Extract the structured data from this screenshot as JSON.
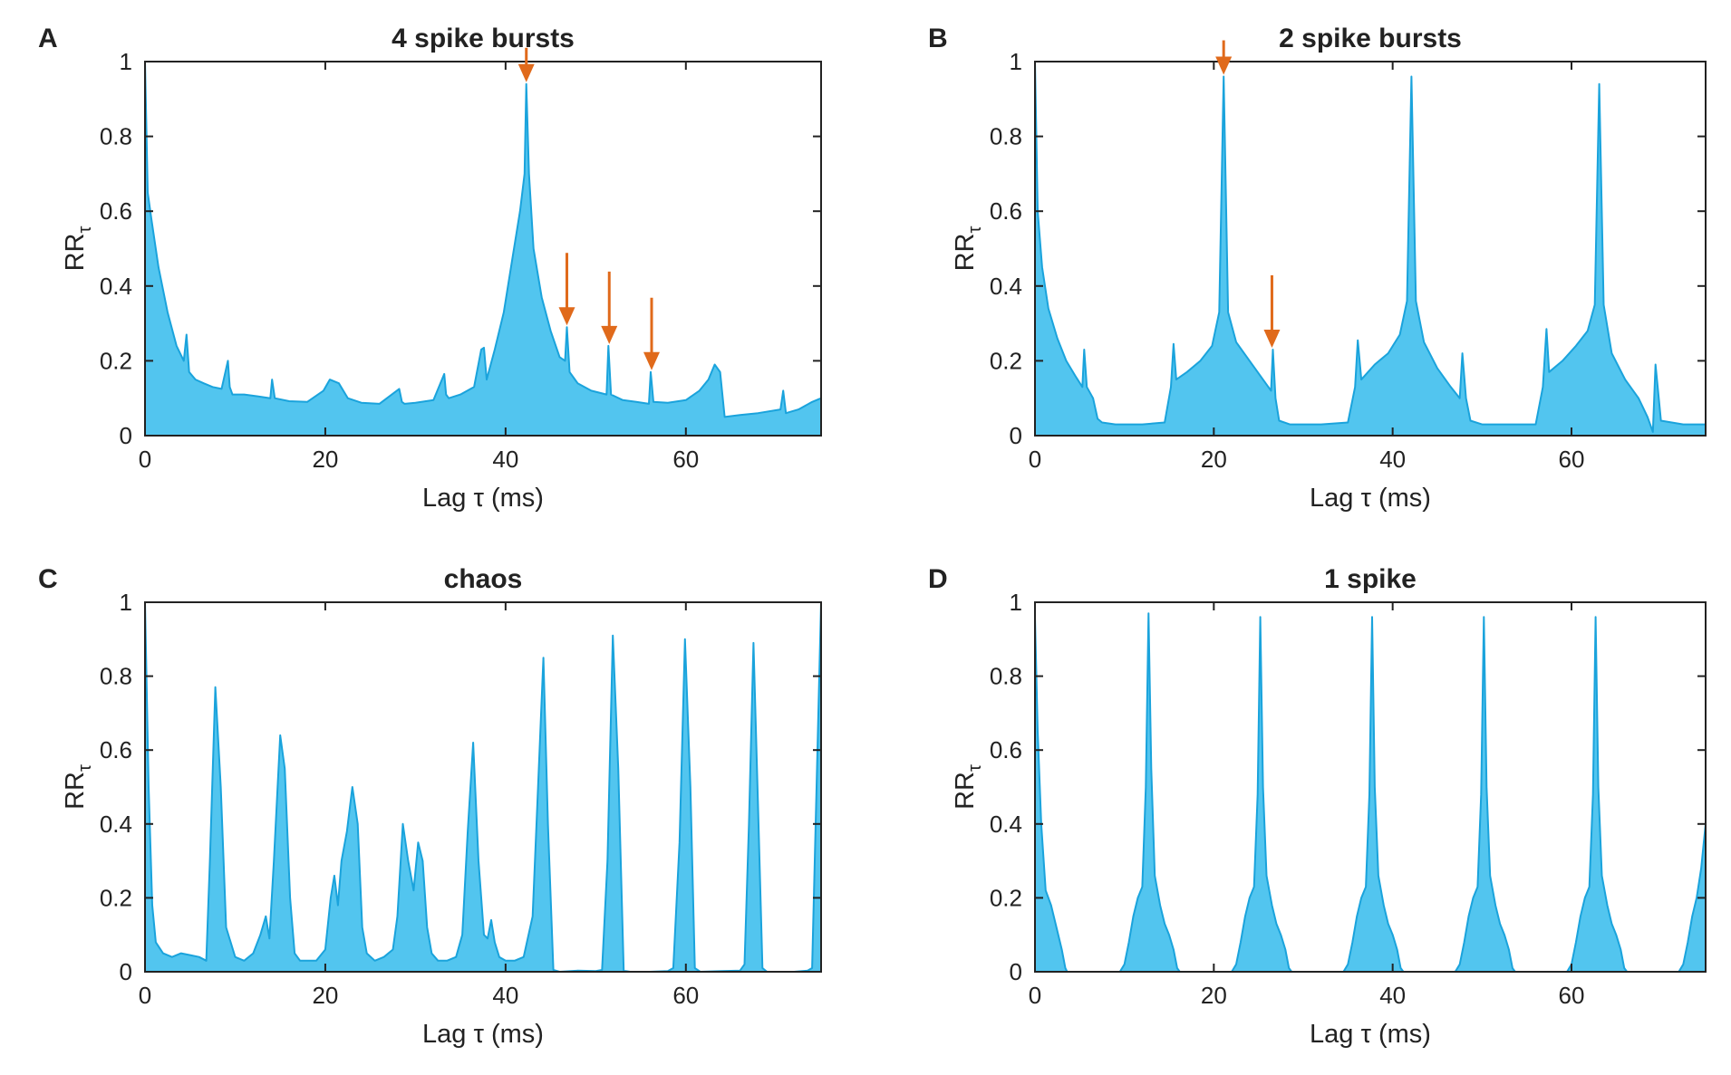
{
  "colors": {
    "fill": "#52c5ef",
    "stroke": "#1aa3dc",
    "arrow": "#e06a1b",
    "axis": "#222222"
  },
  "chart_data": [
    {
      "type": "area",
      "letter": "A",
      "title": "4 spike  bursts",
      "xlabel": "Lag τ (ms)",
      "ylabel_main": "RR",
      "ylabel_sub": "τ",
      "xlim": [
        0,
        75
      ],
      "ylim": [
        0,
        1
      ],
      "xticks": [
        0,
        20,
        40,
        60
      ],
      "yticks": [
        0,
        0.2,
        0.4,
        0.6,
        0.8,
        1
      ],
      "ytick_labels": [
        "0",
        "0.2",
        "0.4",
        "0.6",
        "0.8",
        "1"
      ],
      "arrows": [
        42.3,
        46.8,
        51.5,
        56.2
      ],
      "x": [
        0,
        0.3,
        0.7,
        1.5,
        2.5,
        3.5,
        4.3,
        4.6,
        4.9,
        5.6,
        6.5,
        7.5,
        8.5,
        9.2,
        9.4,
        9.7,
        11,
        12.5,
        13.9,
        14.1,
        14.4,
        16,
        18,
        19.8,
        20.5,
        21.5,
        22.5,
        24,
        26,
        28.2,
        28.5,
        28.8,
        30,
        32,
        33.2,
        33.4,
        33.7,
        35,
        36.5,
        37.3,
        37.6,
        37.9,
        38.8,
        39.8,
        40.8,
        41.6,
        42.1,
        42.3,
        42.6,
        43.1,
        44,
        45,
        46,
        46.6,
        46.8,
        47.1,
        48,
        49.5,
        51.2,
        51.4,
        51.7,
        53,
        54.5,
        55.9,
        56.1,
        56.4,
        58,
        60,
        61.5,
        62.5,
        63.2,
        63.8,
        64.3,
        66,
        68,
        70.5,
        70.8,
        71.1,
        72.5,
        74,
        75
      ],
      "y": [
        1,
        0.65,
        0.58,
        0.45,
        0.33,
        0.24,
        0.2,
        0.27,
        0.17,
        0.15,
        0.14,
        0.13,
        0.125,
        0.2,
        0.13,
        0.11,
        0.11,
        0.105,
        0.1,
        0.15,
        0.1,
        0.092,
        0.09,
        0.12,
        0.15,
        0.14,
        0.1,
        0.088,
        0.085,
        0.125,
        0.09,
        0.085,
        0.088,
        0.095,
        0.165,
        0.11,
        0.1,
        0.11,
        0.13,
        0.23,
        0.235,
        0.15,
        0.23,
        0.33,
        0.48,
        0.6,
        0.7,
        0.94,
        0.7,
        0.5,
        0.37,
        0.28,
        0.21,
        0.2,
        0.29,
        0.17,
        0.14,
        0.12,
        0.11,
        0.24,
        0.11,
        0.095,
        0.09,
        0.085,
        0.17,
        0.09,
        0.088,
        0.095,
        0.12,
        0.15,
        0.19,
        0.17,
        0.05,
        0.055,
        0.06,
        0.07,
        0.12,
        0.06,
        0.07,
        0.09,
        0.1
      ]
    },
    {
      "type": "area",
      "letter": "B",
      "title": "2 spike bursts",
      "xlabel": "Lag τ (ms)",
      "ylabel_main": "RR",
      "ylabel_sub": "τ",
      "xlim": [
        0,
        75
      ],
      "ylim": [
        0,
        1
      ],
      "xticks": [
        0,
        20,
        40,
        60
      ],
      "yticks": [
        0,
        0.2,
        0.4,
        0.6,
        0.8,
        1
      ],
      "ytick_labels": [
        "0",
        "0.2",
        "0.4",
        "0.6",
        "0.8",
        "1"
      ],
      "arrows": [
        21.1,
        26.5
      ],
      "x": [
        0,
        0.3,
        0.8,
        1.5,
        2.5,
        3.5,
        4.5,
        5.3,
        5.5,
        5.8,
        6.5,
        7,
        7.5,
        9,
        12,
        14.5,
        15.2,
        15.5,
        15.8,
        17,
        18.5,
        19.8,
        20.6,
        21.1,
        21.6,
        22.5,
        24,
        25.5,
        26.4,
        26.6,
        26.9,
        27.3,
        28.5,
        32,
        35,
        35.8,
        36.1,
        36.5,
        38,
        39.5,
        40.8,
        41.6,
        42.1,
        42.6,
        43.5,
        45,
        46.5,
        47.5,
        47.8,
        48.2,
        48.7,
        50,
        53,
        56,
        56.8,
        57.2,
        57.5,
        59,
        60.5,
        61.8,
        62.6,
        63.1,
        63.6,
        64.5,
        66,
        67.5,
        68.5,
        69.1,
        69.4,
        70,
        72.5,
        75
      ],
      "y": [
        1,
        0.6,
        0.45,
        0.34,
        0.26,
        0.2,
        0.16,
        0.13,
        0.23,
        0.13,
        0.1,
        0.045,
        0.035,
        0.03,
        0.03,
        0.035,
        0.13,
        0.245,
        0.15,
        0.17,
        0.2,
        0.24,
        0.33,
        0.96,
        0.33,
        0.25,
        0.2,
        0.15,
        0.12,
        0.23,
        0.1,
        0.04,
        0.03,
        0.03,
        0.035,
        0.13,
        0.255,
        0.15,
        0.19,
        0.22,
        0.27,
        0.36,
        0.96,
        0.36,
        0.25,
        0.18,
        0.13,
        0.1,
        0.22,
        0.1,
        0.04,
        0.03,
        0.03,
        0.03,
        0.13,
        0.285,
        0.17,
        0.2,
        0.24,
        0.28,
        0.35,
        0.94,
        0.35,
        0.22,
        0.15,
        0.1,
        0.05,
        0.01,
        0.19,
        0.04,
        0.03,
        0.03
      ]
    },
    {
      "type": "area",
      "letter": "C",
      "title": "chaos",
      "xlabel": "Lag τ (ms)",
      "ylabel_main": "RR",
      "ylabel_sub": "τ",
      "xlim": [
        0,
        75
      ],
      "ylim": [
        0,
        1
      ],
      "xticks": [
        0,
        20,
        40,
        60
      ],
      "yticks": [
        0,
        0.2,
        0.4,
        0.6,
        0.8,
        1
      ],
      "ytick_labels": [
        "0",
        "0.2",
        "0.4",
        "0.6",
        "0.8",
        "1"
      ],
      "arrows": [],
      "x": [
        0,
        0.4,
        0.8,
        1.2,
        2,
        3,
        4,
        5,
        6,
        6.8,
        7.2,
        7.8,
        8.4,
        9,
        10,
        11,
        12,
        12.8,
        13.4,
        13.8,
        14.3,
        15,
        15.5,
        16.1,
        16.6,
        17.2,
        18,
        19,
        20,
        20.6,
        21,
        21.4,
        21.8,
        22.4,
        23,
        23.6,
        24.1,
        24.6,
        25.5,
        26.5,
        27.5,
        28,
        28.6,
        29.2,
        29.8,
        30.3,
        30.8,
        31.3,
        31.8,
        32.5,
        33.5,
        34.5,
        35.2,
        35.8,
        36.4,
        37,
        37.6,
        38,
        38.4,
        38.8,
        39.3,
        40,
        41,
        42,
        43,
        43.6,
        44.2,
        44.7,
        45.3,
        46,
        48,
        50,
        50.7,
        51.3,
        51.9,
        52.5,
        53.1,
        53.8,
        56,
        58,
        58.6,
        59.3,
        59.9,
        60.5,
        61,
        61.6,
        64,
        66,
        66.5,
        67,
        67.5,
        68,
        68.5,
        69,
        72,
        73.5,
        74,
        74.5,
        75
      ],
      "y": [
        1,
        0.5,
        0.18,
        0.08,
        0.05,
        0.04,
        0.05,
        0.045,
        0.04,
        0.03,
        0.3,
        0.77,
        0.5,
        0.12,
        0.04,
        0.03,
        0.05,
        0.1,
        0.15,
        0.09,
        0.3,
        0.64,
        0.55,
        0.2,
        0.05,
        0.03,
        0.03,
        0.03,
        0.06,
        0.2,
        0.26,
        0.18,
        0.3,
        0.38,
        0.5,
        0.4,
        0.12,
        0.05,
        0.03,
        0.04,
        0.06,
        0.15,
        0.4,
        0.3,
        0.22,
        0.35,
        0.3,
        0.12,
        0.05,
        0.03,
        0.03,
        0.04,
        0.1,
        0.38,
        0.62,
        0.3,
        0.1,
        0.09,
        0.14,
        0.08,
        0.04,
        0.03,
        0.03,
        0.04,
        0.15,
        0.5,
        0.85,
        0.4,
        0.005,
        0,
        0.003,
        0.002,
        0.005,
        0.3,
        0.91,
        0.55,
        0.003,
        0,
        0,
        0.002,
        0.01,
        0.35,
        0.9,
        0.5,
        0.01,
        0,
        0.002,
        0.003,
        0.02,
        0.4,
        0.89,
        0.45,
        0.01,
        0,
        0,
        0.003,
        0.01,
        0.5,
        1
      ]
    },
    {
      "type": "area",
      "letter": "D",
      "title": "1 spike",
      "xlabel": "Lag τ (ms)",
      "ylabel_main": "RR",
      "ylabel_sub": "τ",
      "xlim": [
        0,
        75
      ],
      "ylim": [
        0,
        1
      ],
      "xticks": [
        0,
        20,
        40,
        60
      ],
      "yticks": [
        0,
        0.2,
        0.4,
        0.6,
        0.8,
        1
      ],
      "ytick_labels": [
        "0",
        "0.2",
        "0.4",
        "0.6",
        "0.8",
        "1"
      ],
      "arrows": [],
      "x": [
        0,
        0.3,
        0.7,
        1.2,
        1.8,
        2.4,
        3,
        3.4,
        3.6,
        9.5,
        10,
        10.5,
        11,
        11.5,
        12,
        12.4,
        12.7,
        13,
        13.4,
        14,
        14.5,
        15,
        15.5,
        15.9,
        16.2,
        22,
        22.5,
        23,
        23.5,
        24,
        24.5,
        24.9,
        25.2,
        25.5,
        25.9,
        26.5,
        27,
        27.5,
        28,
        28.4,
        28.7,
        34.5,
        35,
        35.5,
        36,
        36.5,
        37,
        37.4,
        37.7,
        38,
        38.4,
        39,
        39.5,
        40,
        40.5,
        40.9,
        41.2,
        47,
        47.5,
        48,
        48.5,
        49,
        49.5,
        49.9,
        50.2,
        50.5,
        50.9,
        51.5,
        52,
        52.5,
        53,
        53.4,
        53.7,
        59.5,
        60,
        60.5,
        61,
        61.5,
        62,
        62.4,
        62.7,
        63,
        63.4,
        64,
        64.5,
        65,
        65.5,
        65.9,
        66.2,
        72,
        72.5,
        73,
        73.5,
        74,
        74.5,
        75
      ],
      "y": [
        0.96,
        0.65,
        0.4,
        0.22,
        0.18,
        0.12,
        0.06,
        0.01,
        0,
        0,
        0.02,
        0.08,
        0.15,
        0.2,
        0.23,
        0.5,
        0.97,
        0.55,
        0.26,
        0.18,
        0.13,
        0.1,
        0.06,
        0.01,
        0,
        0,
        0.02,
        0.08,
        0.15,
        0.2,
        0.23,
        0.48,
        0.96,
        0.5,
        0.26,
        0.18,
        0.13,
        0.1,
        0.06,
        0.01,
        0,
        0,
        0.02,
        0.08,
        0.15,
        0.2,
        0.23,
        0.48,
        0.96,
        0.5,
        0.26,
        0.18,
        0.13,
        0.1,
        0.06,
        0.01,
        0,
        0,
        0.02,
        0.08,
        0.15,
        0.2,
        0.23,
        0.48,
        0.96,
        0.5,
        0.26,
        0.18,
        0.13,
        0.1,
        0.06,
        0.01,
        0,
        0,
        0.02,
        0.08,
        0.15,
        0.2,
        0.23,
        0.48,
        0.96,
        0.5,
        0.26,
        0.18,
        0.13,
        0.1,
        0.06,
        0.01,
        0,
        0,
        0.02,
        0.08,
        0.15,
        0.2,
        0.28,
        0.4
      ]
    }
  ]
}
